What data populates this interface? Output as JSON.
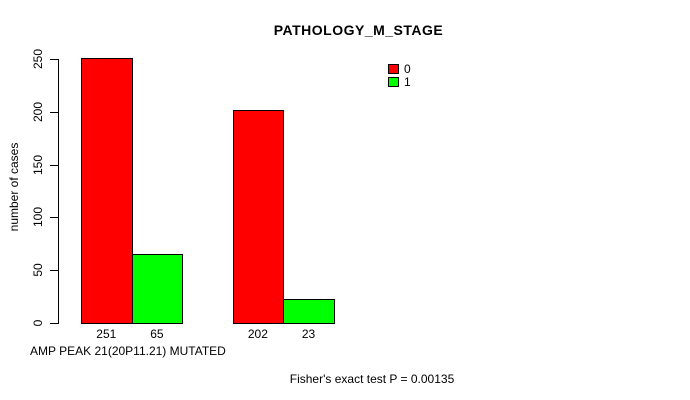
{
  "chart_data": {
    "type": "bar",
    "grouped": true,
    "title": "PATHOLOGY_M_STAGE",
    "xlabel": "AMP PEAK 21(20P11.21) MUTATED",
    "ylabel": "number of cases",
    "ylim": [
      0,
      250
    ],
    "yticks": [
      0,
      50,
      100,
      150,
      200,
      250
    ],
    "series": [
      {
        "name": "0",
        "color": "#FF0000",
        "values": [
          251,
          202
        ]
      },
      {
        "name": "1",
        "color": "#00FF00",
        "values": [
          65,
          23
        ]
      }
    ],
    "bar_count_labels": [
      "251",
      "65",
      "202",
      "23"
    ],
    "legend": {
      "position": "top-right-inner",
      "entries": [
        {
          "label": "0",
          "color": "#FF0000"
        },
        {
          "label": "1",
          "color": "#00FF00"
        }
      ]
    },
    "annotation": "Fisher's exact test P = 0.00135",
    "grid": false,
    "background": "#FFFFFF",
    "axis_color": "#000000"
  }
}
